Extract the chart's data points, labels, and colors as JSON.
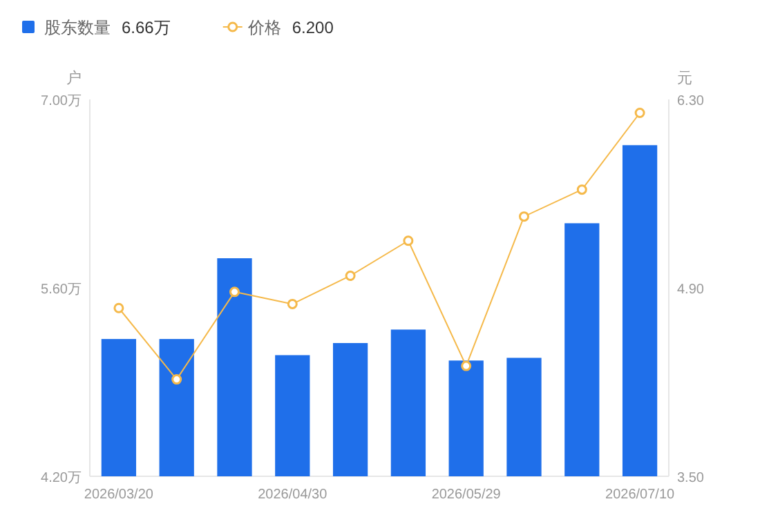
{
  "chart_data": {
    "type": "bar",
    "categories": [
      "2026/03/20",
      null,
      null,
      "2026/04/30",
      null,
      null,
      "2026/05/29",
      null,
      null,
      "2026/07/10"
    ],
    "series": [
      {
        "name": "股东数量",
        "color": "#1f6fea",
        "values": [
          5.22,
          5.22,
          5.82,
          5.1,
          5.19,
          5.29,
          5.06,
          5.08,
          6.08,
          6.66
        ]
      },
      {
        "name": "价格",
        "type": "line",
        "axis": "y2",
        "color": "#f5b94a",
        "marker": "circle",
        "values": [
          4.75,
          4.22,
          4.87,
          4.78,
          4.99,
          5.25,
          4.32,
          5.43,
          5.63,
          6.2
        ]
      }
    ],
    "annotations": [
      "6.66万",
      "6.200"
    ],
    "ylabel": "户",
    "y2label": "元",
    "ylim": [
      4.2,
      7.0
    ],
    "yticks": [
      {
        "value": 4.2,
        "label": "4.20万"
      },
      {
        "value": 5.6,
        "label": "5.60万"
      },
      {
        "value": 7.0,
        "label": "7.00万"
      }
    ],
    "y2lim": [
      3.5,
      6.3
    ],
    "y2ticks": [
      {
        "value": 3.5,
        "label": "3.50"
      },
      {
        "value": 4.9,
        "label": "4.90"
      },
      {
        "value": 6.3,
        "label": "6.30"
      }
    ],
    "legend": "top left",
    "grid": false
  }
}
